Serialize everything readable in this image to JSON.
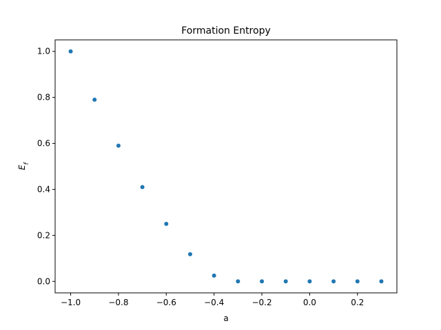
{
  "chart_data": {
    "type": "scatter",
    "title": "Formation Entropy",
    "xlabel": "a",
    "ylabel_main": "E",
    "ylabel_sub": "f",
    "xlim": [
      -1.065,
      0.365
    ],
    "ylim": [
      -0.05,
      1.05
    ],
    "x_ticks": [
      -1.0,
      -0.8,
      -0.6,
      -0.4,
      -0.2,
      0.0,
      0.2
    ],
    "x_tick_labels": [
      "−1.0",
      "−0.8",
      "−0.6",
      "−0.4",
      "−0.2",
      "0.0",
      "0.2"
    ],
    "y_ticks": [
      0.0,
      0.2,
      0.4,
      0.6,
      0.8,
      1.0
    ],
    "y_tick_labels": [
      "0.0",
      "0.2",
      "0.4",
      "0.6",
      "0.8",
      "1.0"
    ],
    "grid": false,
    "marker_color": "#1f77b4",
    "series": [
      {
        "x": [
          -1.0,
          -0.9,
          -0.8,
          -0.7,
          -0.6,
          -0.5,
          -0.4,
          -0.3,
          -0.2,
          -0.1,
          0.0,
          0.1,
          0.2,
          0.3
        ],
        "y": [
          1.0,
          0.79,
          0.59,
          0.41,
          0.25,
          0.118,
          0.025,
          0.0,
          0.0,
          0.0,
          0.0,
          0.0,
          0.0,
          0.0
        ]
      }
    ]
  }
}
